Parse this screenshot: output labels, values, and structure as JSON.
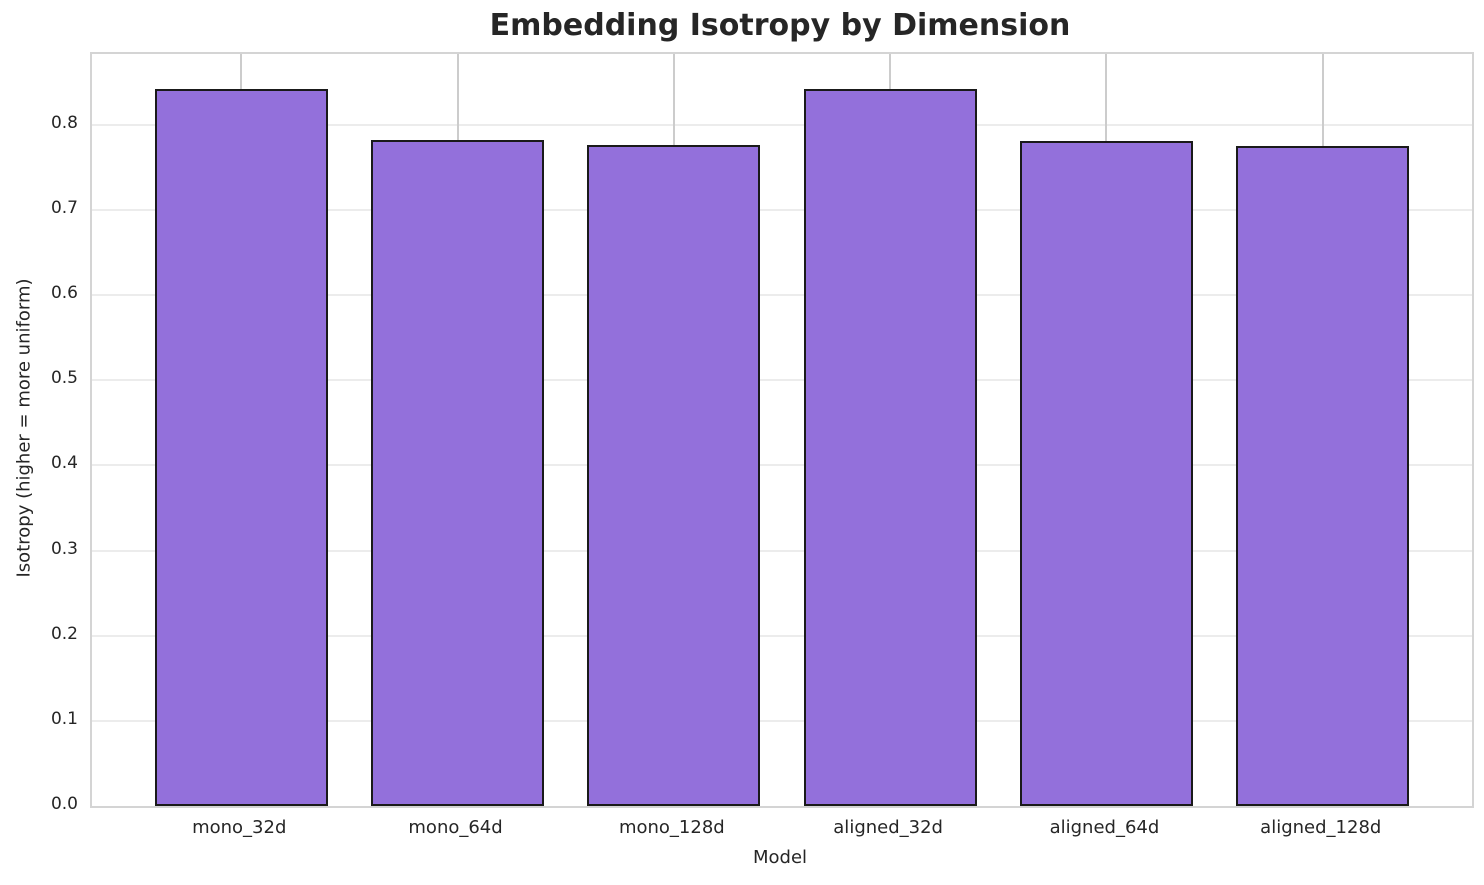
{
  "chart_data": {
    "type": "bar",
    "title": "Embedding Isotropy by Dimension",
    "xlabel": "Model",
    "ylabel": "Isotropy (higher = more uniform)",
    "categories": [
      "mono_32d",
      "mono_64d",
      "mono_128d",
      "aligned_32d",
      "aligned_64d",
      "aligned_128d"
    ],
    "values": [
      0.842,
      0.782,
      0.776,
      0.842,
      0.781,
      0.775
    ],
    "ylim": [
      0,
      0.883
    ],
    "yticks": [
      0.0,
      0.1,
      0.2,
      0.3,
      0.4,
      0.5,
      0.6,
      0.7,
      0.8
    ],
    "ytick_labels": [
      "0.0",
      "0.1",
      "0.2",
      "0.3",
      "0.4",
      "0.5",
      "0.6",
      "0.7",
      "0.8"
    ],
    "grid": "on",
    "legend": "none",
    "colors": {
      "bar_fill": "#9370DB",
      "bar_edge": "#1a1a1a",
      "grid_horizontal": "#ececec",
      "grid_vertical": "#cccccc",
      "spine": "#d4d4d4",
      "text": "#262626",
      "background": "#ffffff"
    }
  }
}
